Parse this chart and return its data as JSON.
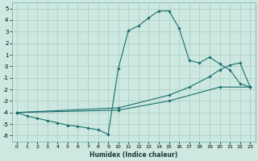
{
  "xlabel": "Humidex (Indice chaleur)",
  "xlim": [
    -0.5,
    23.5
  ],
  "ylim": [
    -6.5,
    5.5
  ],
  "xticks": [
    0,
    1,
    2,
    3,
    4,
    5,
    6,
    7,
    8,
    9,
    10,
    11,
    12,
    13,
    14,
    15,
    16,
    17,
    18,
    19,
    20,
    21,
    22,
    23
  ],
  "yticks": [
    -6,
    -5,
    -4,
    -3,
    -2,
    -1,
    0,
    1,
    2,
    3,
    4,
    5
  ],
  "bg_color": "#cce8e0",
  "grid_color": "#aaccc4",
  "line_color": "#1a6e6e",
  "series1": [
    [
      0,
      -4.0
    ],
    [
      1,
      -4.3
    ],
    [
      2,
      -4.5
    ],
    [
      3,
      -4.7
    ],
    [
      4,
      -4.9
    ],
    [
      5,
      -5.1
    ],
    [
      6,
      -5.2
    ],
    [
      7,
      -5.35
    ],
    [
      8,
      -5.5
    ],
    [
      9,
      -5.9
    ],
    [
      10,
      -0.2
    ],
    [
      11,
      3.1
    ],
    [
      12,
      3.5
    ],
    [
      13,
      4.2
    ],
    [
      14,
      4.8
    ],
    [
      15,
      4.8
    ],
    [
      16,
      3.3
    ],
    [
      17,
      0.5
    ],
    [
      18,
      0.3
    ],
    [
      19,
      0.8
    ],
    [
      20,
      0.2
    ],
    [
      21,
      -0.3
    ],
    [
      22,
      -1.5
    ],
    [
      23,
      -1.8
    ]
  ],
  "series2": [
    [
      0,
      -4.0
    ],
    [
      10,
      -3.6
    ],
    [
      15,
      -2.5
    ],
    [
      17,
      -1.8
    ],
    [
      19,
      -0.9
    ],
    [
      20,
      -0.3
    ],
    [
      21,
      0.1
    ],
    [
      22,
      0.3
    ],
    [
      23,
      -1.8
    ]
  ],
  "series3": [
    [
      0,
      -4.0
    ],
    [
      10,
      -3.8
    ],
    [
      15,
      -3.0
    ],
    [
      20,
      -1.8
    ],
    [
      23,
      -1.8
    ]
  ]
}
